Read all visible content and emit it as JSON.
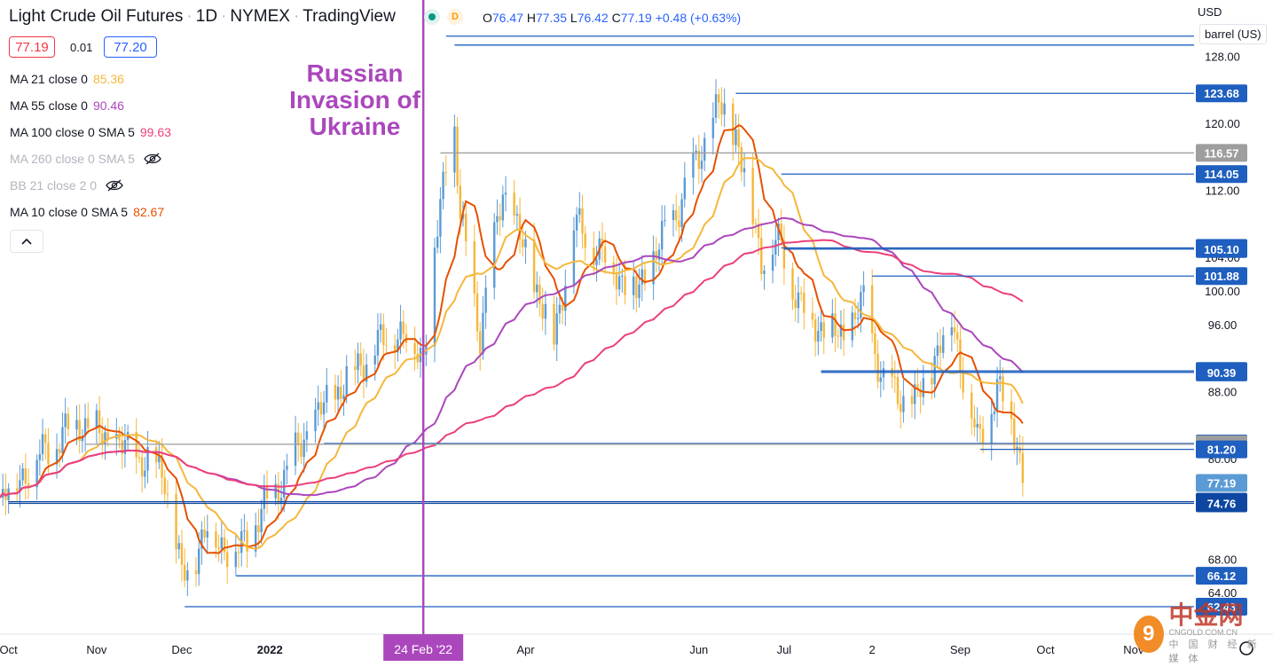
{
  "header": {
    "title": "Light Crude Oil Futures",
    "interval": "1D",
    "exchange": "NYMEX",
    "source": "TradingView",
    "badge": "D",
    "ohlc": {
      "o_label": "O",
      "o": "76.47",
      "h_label": "H",
      "h": "77.35",
      "l_label": "L",
      "l": "76.42",
      "c_label": "C",
      "c": "77.19",
      "change": "+0.48 (+0.63%)"
    }
  },
  "quote": {
    "sell": "77.19",
    "spread": "0.01",
    "buy": "77.20"
  },
  "indicators": [
    {
      "label": "MA 21 close 0",
      "value": "85.36",
      "color": "#f5b73b",
      "visible": true
    },
    {
      "label": "MA 55 close 0",
      "value": "90.46",
      "color": "#ab47bc",
      "visible": true
    },
    {
      "label": "MA 100 close 0 SMA 5",
      "value": "99.63",
      "color": "#ec407a",
      "visible": true
    },
    {
      "label": "MA 260 close 0 SMA 5",
      "value": "",
      "color": "#b2b5be",
      "visible": false
    },
    {
      "label": "BB 21 close 2 0",
      "value": "",
      "color": "#b2b5be",
      "visible": false
    },
    {
      "label": "MA 10 close 0 SMA 5",
      "value": "82.67",
      "color": "#e65100",
      "visible": true
    }
  ],
  "annotation": "Russian Invasion of Ukraine",
  "currency": "USD",
  "unit_label": "barrel (US)",
  "watermark": {
    "name": "中金网",
    "site": "CNGOLD.COM.CN",
    "tag": "中 国 财 经 新 媒 体"
  },
  "colors": {
    "up": "#5b9bd5",
    "down": "#f5b73b",
    "level": "#1e5fbf",
    "event": "#ab47bc"
  },
  "chart_data": {
    "type": "candlestick",
    "title": "Light Crude Oil Futures",
    "xlabel": "",
    "ylabel": "",
    "y_axis_ticks": [
      "128.00",
      "120.00",
      "112.00",
      "104.00",
      "100.00",
      "96.00",
      "88.00",
      "80.00",
      "68.00",
      "64.00"
    ],
    "ylim": [
      58,
      132
    ],
    "x_axis_ticks": [
      "Oct",
      "Nov",
      "Dec",
      "2022",
      "24 Feb '22",
      "Apr",
      "Jun",
      "Jul",
      "2",
      "Sep",
      "Oct",
      "Nov"
    ],
    "x_tick_dates": [
      "2021-10-01",
      "2021-11-01",
      "2021-12-01",
      "2022-01-01",
      "2022-02-24",
      "2022-04-01",
      "2022-06-01",
      "2022-07-01",
      "2022-08-01",
      "2022-09-01",
      "2022-10-01",
      "2022-11-01"
    ],
    "xlim": [
      "2021-09-28",
      "2022-11-15"
    ],
    "event": {
      "date": "2022-02-24",
      "label": "24 Feb '22"
    },
    "last_date": "2022-09-23",
    "key_closes": [
      {
        "date": "2021-09-28",
        "close": 75.3
      },
      {
        "date": "2021-10-12",
        "close": 80.5
      },
      {
        "date": "2021-10-26",
        "close": 84.6
      },
      {
        "date": "2021-11-10",
        "close": 81.3
      },
      {
        "date": "2021-11-25",
        "close": 78.4
      },
      {
        "date": "2021-12-01",
        "close": 65.6
      },
      {
        "date": "2021-12-10",
        "close": 71.7
      },
      {
        "date": "2021-12-20",
        "close": 68.6
      },
      {
        "date": "2022-01-04",
        "close": 76.9
      },
      {
        "date": "2022-01-18",
        "close": 85.4
      },
      {
        "date": "2022-02-04",
        "close": 92.3
      },
      {
        "date": "2022-02-14",
        "close": 95.4
      },
      {
        "date": "2022-02-24",
        "close": 92.8
      },
      {
        "date": "2022-03-04",
        "close": 115.7
      },
      {
        "date": "2022-03-07",
        "close": 119.4
      },
      {
        "date": "2022-03-09",
        "close": 108.7
      },
      {
        "date": "2022-03-16",
        "close": 95.0
      },
      {
        "date": "2022-03-24",
        "close": 112.3
      },
      {
        "date": "2022-04-11",
        "close": 94.3
      },
      {
        "date": "2022-04-18",
        "close": 108.2
      },
      {
        "date": "2022-05-10",
        "close": 99.8
      },
      {
        "date": "2022-05-25",
        "close": 110.3
      },
      {
        "date": "2022-06-08",
        "close": 122.1
      },
      {
        "date": "2022-06-14",
        "close": 118.9
      },
      {
        "date": "2022-06-23",
        "close": 104.3
      },
      {
        "date": "2022-06-30",
        "close": 105.8
      },
      {
        "date": "2022-07-06",
        "close": 98.5
      },
      {
        "date": "2022-07-14",
        "close": 95.8
      },
      {
        "date": "2022-07-22",
        "close": 94.7
      },
      {
        "date": "2022-07-29",
        "close": 98.6
      },
      {
        "date": "2022-08-05",
        "close": 89.0
      },
      {
        "date": "2022-08-16",
        "close": 86.5
      },
      {
        "date": "2022-08-29",
        "close": 97.0
      },
      {
        "date": "2022-09-07",
        "close": 81.9
      },
      {
        "date": "2022-09-14",
        "close": 88.5
      },
      {
        "date": "2022-09-21",
        "close": 82.9
      },
      {
        "date": "2022-09-23",
        "close": 77.19
      }
    ],
    "moving_averages": [
      {
        "name": "MA 10",
        "period": 10,
        "color": "#e65100",
        "last": 82.67
      },
      {
        "name": "MA 21",
        "period": 21,
        "color": "#f5b73b",
        "last": 85.36
      },
      {
        "name": "MA 55",
        "period": 55,
        "color": "#ab47bc",
        "last": 90.46
      },
      {
        "name": "MA 100",
        "period": 100,
        "color": "#ec407a",
        "last": 99.63
      }
    ],
    "levels": [
      {
        "value": "123.68",
        "start": "2022-06-14",
        "color": "#1e5fbf"
      },
      {
        "value": "116.57",
        "start": "2022-03-02",
        "color": "#9e9e9e"
      },
      {
        "value": "114.05",
        "start": "2022-06-30",
        "color": "#1e5fbf"
      },
      {
        "value": "105.24",
        "start": "2022-06-30",
        "color": "#1e5fbf"
      },
      {
        "value": "105.10",
        "start": "2022-07-01",
        "color": "#1e5fbf"
      },
      {
        "value": "101.88",
        "start": "2022-08-01",
        "color": "#1e5fbf"
      },
      {
        "value": "90.56",
        "start": "2022-07-14",
        "color": "#1e5fbf"
      },
      {
        "value": "90.39",
        "start": "2022-07-14",
        "color": "#1e5fbf"
      },
      {
        "value": "81.90",
        "start": "2022-01-20",
        "color": "#1e5fbf"
      },
      {
        "value": "81.81",
        "start": "2021-10-28",
        "color": "#9e9e9e"
      },
      {
        "value": "81.20",
        "start": "2022-09-08",
        "color": "#1e5fbf"
      },
      {
        "value": "74.96",
        "start": "2021-10-01",
        "color": "#0d47a1"
      },
      {
        "value": "74.76",
        "start": "2021-10-01",
        "color": "#0d47a1"
      },
      {
        "value": "66.12",
        "start": "2021-12-20",
        "color": "#1e5fbf"
      },
      {
        "value": "62.43",
        "start": "2021-12-02",
        "color": "#1e5fbf"
      }
    ],
    "top_levels": [
      {
        "value": "130.50",
        "start": "2022-03-04",
        "color": "#1e5fbf"
      },
      {
        "value": "129.44",
        "start": "2022-03-07",
        "color": "#1e5fbf"
      }
    ],
    "last_price": "77.19"
  }
}
